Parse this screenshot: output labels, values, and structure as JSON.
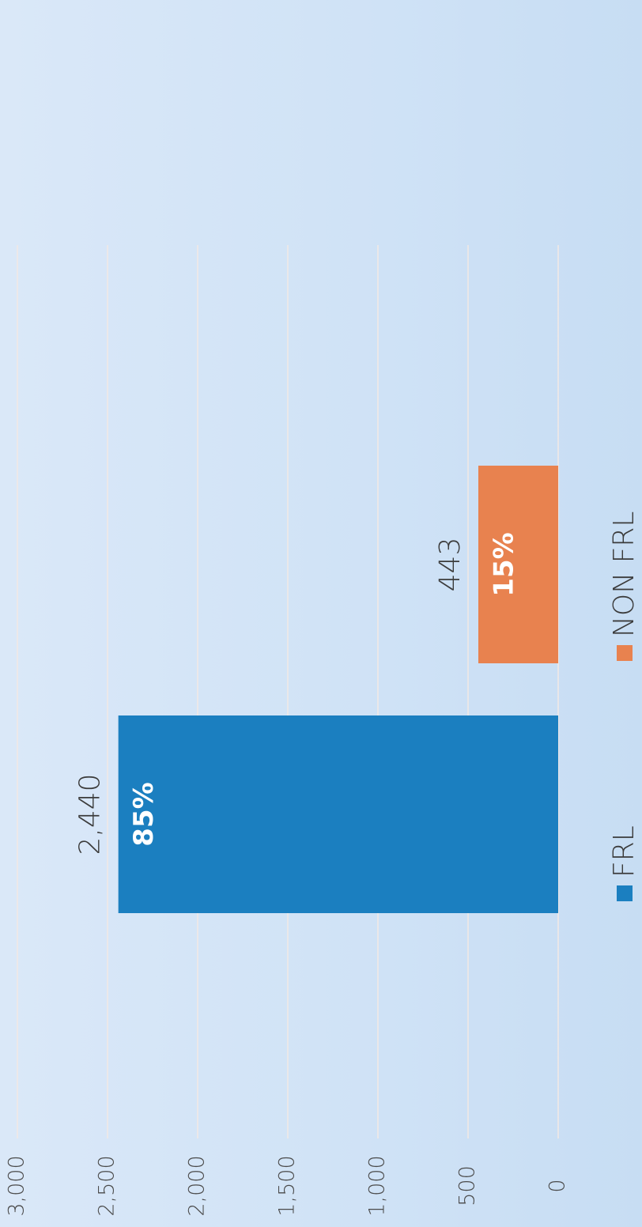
{
  "chart_data": {
    "type": "bar",
    "categories": [
      "FRL",
      "NON FRL"
    ],
    "values": [
      2440,
      443
    ],
    "value_labels": [
      "2,440",
      "443"
    ],
    "percent_labels": [
      "85%",
      "15%"
    ],
    "colors": [
      "#1b7fc0",
      "#e8824f"
    ],
    "ylim": [
      0,
      3000
    ],
    "yticks": [
      0,
      500,
      {
        "value": 1000,
        "label": "1,000"
      },
      {
        "value": 1500,
        "label": "1,500"
      },
      {
        "value": 2000,
        "label": "2,000"
      },
      {
        "value": 2500,
        "label": "2,500"
      },
      {
        "value": 3000,
        "label": "3,000"
      }
    ],
    "grid": true,
    "legend": "bottom"
  }
}
